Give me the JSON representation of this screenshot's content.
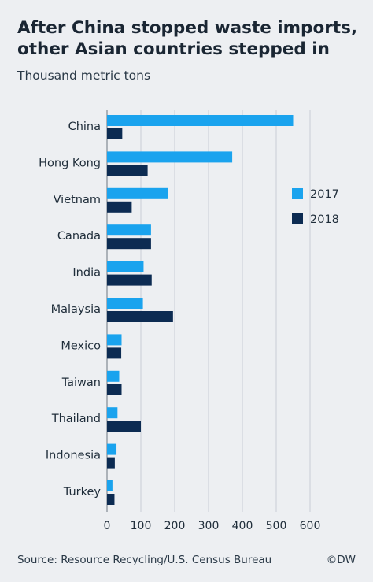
{
  "title": "After China stopped waste imports, other Asian countries stepped in",
  "subtitle": "Thousand metric tons",
  "source": "Source: Resource Recycling/U.S. Census Bureau",
  "credit": "©DW",
  "colors": {
    "s2017": "#1aa3ee",
    "s2018": "#0c2b52",
    "grid": "#c9ced6",
    "axis": "#6b7480"
  },
  "chart_data": {
    "type": "bar",
    "orientation": "horizontal",
    "title": "After China stopped waste imports, other Asian countries stepped in",
    "subtitle": "Thousand metric tons",
    "categories": [
      "China",
      "Hong Kong",
      "Vietnam",
      "Canada",
      "India",
      "Malaysia",
      "Mexico",
      "Taiwan",
      "Thailand",
      "Indonesia",
      "Turkey"
    ],
    "series": [
      {
        "name": "2017",
        "values": [
          550,
          370,
          180,
          130,
          108,
          106,
          43,
          36,
          31,
          28,
          16
        ]
      },
      {
        "name": "2018",
        "values": [
          45,
          120,
          73,
          130,
          132,
          195,
          42,
          43,
          100,
          23,
          22
        ]
      }
    ],
    "xlim": [
      0,
      600
    ],
    "xticks": [
      0,
      100,
      200,
      300,
      400,
      500,
      600
    ],
    "grid": true,
    "legend": "right"
  }
}
